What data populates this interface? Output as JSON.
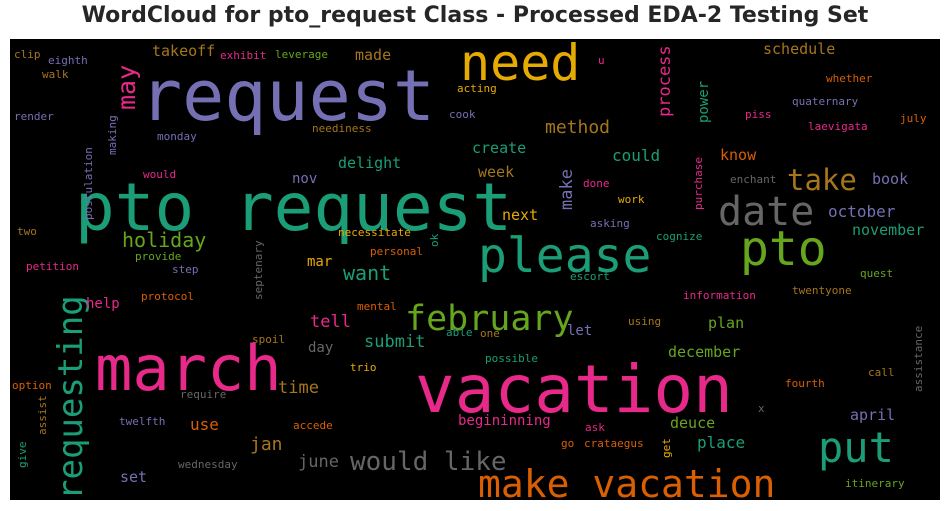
{
  "chart_data": {
    "type": "wordcloud",
    "title": "WordCloud for pto_request Class - Processed EDA-2 Testing Set",
    "background": "#000000",
    "palette": {
      "purple": "#7570b3",
      "green": "#1b9e77",
      "orange": "#d95f02",
      "magenta": "#e7298a",
      "lime": "#66a61e",
      "gold": "#e6ab02",
      "brown": "#a6761d",
      "gray": "#666666"
    },
    "words": [
      {
        "text": "request",
        "weight": 1.0,
        "color": "purple"
      },
      {
        "text": "pto request",
        "weight": 0.98,
        "color": "green"
      },
      {
        "text": "vacation",
        "weight": 0.97,
        "color": "magenta"
      },
      {
        "text": "march",
        "weight": 0.92,
        "color": "magenta"
      },
      {
        "text": "need",
        "weight": 0.74,
        "color": "gold"
      },
      {
        "text": "pto",
        "weight": 0.7,
        "color": "lime"
      },
      {
        "text": "please",
        "weight": 0.7,
        "color": "green"
      },
      {
        "text": "put",
        "weight": 0.6,
        "color": "green"
      },
      {
        "text": "date",
        "weight": 0.59,
        "color": "gray"
      },
      {
        "text": "make vacation",
        "weight": 0.57,
        "color": "orange"
      },
      {
        "text": "february",
        "weight": 0.51,
        "color": "lime"
      },
      {
        "text": "requesting",
        "weight": 0.5,
        "color": "green"
      },
      {
        "text": "take",
        "weight": 0.43,
        "color": "brown"
      },
      {
        "text": "would like",
        "weight": 0.38,
        "color": "gray"
      },
      {
        "text": "may",
        "weight": 0.37,
        "color": "magenta"
      },
      {
        "text": "holiday",
        "weight": 0.3,
        "color": "lime"
      },
      {
        "text": "want",
        "weight": 0.3,
        "color": "green"
      },
      {
        "text": "method",
        "weight": 0.27,
        "color": "brown"
      },
      {
        "text": "jan",
        "weight": 0.27,
        "color": "brown"
      },
      {
        "text": "make",
        "weight": 0.26,
        "color": "purple"
      },
      {
        "text": "process",
        "weight": 0.25,
        "color": "magenta"
      },
      {
        "text": "time",
        "weight": 0.25,
        "color": "brown"
      },
      {
        "text": "tell",
        "weight": 0.25,
        "color": "magenta"
      },
      {
        "text": "submit",
        "weight": 0.25,
        "color": "green"
      },
      {
        "text": "june",
        "weight": 0.25,
        "color": "gray"
      },
      {
        "text": "could",
        "weight": 0.24,
        "color": "green"
      },
      {
        "text": "october",
        "weight": 0.24,
        "color": "purple"
      },
      {
        "text": "use",
        "weight": 0.24,
        "color": "orange"
      },
      {
        "text": "place",
        "weight": 0.24,
        "color": "green"
      },
      {
        "text": "create",
        "weight": 0.22,
        "color": "green"
      },
      {
        "text": "week",
        "weight": 0.22,
        "color": "brown"
      },
      {
        "text": "delight",
        "weight": 0.22,
        "color": "green"
      },
      {
        "text": "know",
        "weight": 0.22,
        "color": "orange"
      },
      {
        "text": "book",
        "weight": 0.22,
        "color": "purple"
      },
      {
        "text": "schedule",
        "weight": 0.22,
        "color": "brown"
      },
      {
        "text": "made",
        "weight": 0.21,
        "color": "brown"
      },
      {
        "text": "takeoff",
        "weight": 0.21,
        "color": "brown"
      },
      {
        "text": "next",
        "weight": 0.21,
        "color": "gold"
      },
      {
        "text": "november",
        "weight": 0.21,
        "color": "green"
      },
      {
        "text": "december",
        "weight": 0.21,
        "color": "lime"
      },
      {
        "text": "plan",
        "weight": 0.21,
        "color": "lime"
      },
      {
        "text": "deuce",
        "weight": 0.21,
        "color": "lime"
      },
      {
        "text": "april",
        "weight": 0.21,
        "color": "purple"
      },
      {
        "text": "set",
        "weight": 0.21,
        "color": "purple"
      },
      {
        "text": "power",
        "weight": 0.2,
        "color": "green"
      },
      {
        "text": "nov",
        "weight": 0.2,
        "color": "purple"
      },
      {
        "text": "day",
        "weight": 0.2,
        "color": "gray"
      },
      {
        "text": "let",
        "weight": 0.2,
        "color": "purple"
      },
      {
        "text": "mar",
        "weight": 0.2,
        "color": "gold"
      },
      {
        "text": "help",
        "weight": 0.2,
        "color": "magenta"
      },
      {
        "text": "begininning",
        "weight": 0.2,
        "color": "magenta"
      },
      {
        "text": "twelfth",
        "weight": 0.14,
        "color": "purple"
      },
      {
        "text": "eighth",
        "weight": 0.14,
        "color": "purple"
      },
      {
        "text": "clip",
        "weight": 0.14,
        "color": "brown"
      },
      {
        "text": "exhibit",
        "weight": 0.13,
        "color": "magenta"
      },
      {
        "text": "leverage",
        "weight": 0.13,
        "color": "lime"
      },
      {
        "text": "walk",
        "weight": 0.13,
        "color": "brown"
      },
      {
        "text": "acting",
        "weight": 0.13,
        "color": "gold"
      },
      {
        "text": "render",
        "weight": 0.13,
        "color": "purple"
      },
      {
        "text": "neediness",
        "weight": 0.13,
        "color": "brown"
      },
      {
        "text": "cook",
        "weight": 0.13,
        "color": "purple"
      },
      {
        "text": "monday",
        "weight": 0.13,
        "color": "purple"
      },
      {
        "text": "would",
        "weight": 0.13,
        "color": "magenta"
      },
      {
        "text": "two",
        "weight": 0.13,
        "color": "brown"
      },
      {
        "text": "petition",
        "weight": 0.13,
        "color": "magenta"
      },
      {
        "text": "provide",
        "weight": 0.13,
        "color": "lime"
      },
      {
        "text": "step",
        "weight": 0.13,
        "color": "purple"
      },
      {
        "text": "protocol",
        "weight": 0.13,
        "color": "orange"
      },
      {
        "text": "spoil",
        "weight": 0.13,
        "color": "brown"
      },
      {
        "text": "trio",
        "weight": 0.13,
        "color": "gold"
      },
      {
        "text": "mental",
        "weight": 0.13,
        "color": "orange"
      },
      {
        "text": "necessitate",
        "weight": 0.13,
        "color": "gold"
      },
      {
        "text": "personal",
        "weight": 0.13,
        "color": "orange"
      },
      {
        "text": "require",
        "weight": 0.13,
        "color": "gray"
      },
      {
        "text": "accede",
        "weight": 0.13,
        "color": "orange"
      },
      {
        "text": "wednesday",
        "weight": 0.13,
        "color": "gray"
      },
      {
        "text": "option",
        "weight": 0.13,
        "color": "orange"
      },
      {
        "text": "ask",
        "weight": 0.13,
        "color": "magenta"
      },
      {
        "text": "go",
        "weight": 0.13,
        "color": "orange"
      },
      {
        "text": "crataegus",
        "weight": 0.13,
        "color": "orange"
      },
      {
        "text": "possible",
        "weight": 0.13,
        "color": "green"
      },
      {
        "text": "able",
        "weight": 0.13,
        "color": "green"
      },
      {
        "text": "one",
        "weight": 0.13,
        "color": "brown"
      },
      {
        "text": "using",
        "weight": 0.13,
        "color": "brown"
      },
      {
        "text": "escort",
        "weight": 0.13,
        "color": "green"
      },
      {
        "text": "asking",
        "weight": 0.13,
        "color": "purple"
      },
      {
        "text": "done",
        "weight": 0.13,
        "color": "magenta"
      },
      {
        "text": "work",
        "weight": 0.13,
        "color": "gold"
      },
      {
        "text": "enchant",
        "weight": 0.13,
        "color": "gray"
      },
      {
        "text": "piss",
        "weight": 0.13,
        "color": "magenta"
      },
      {
        "text": "whether",
        "weight": 0.13,
        "color": "orange"
      },
      {
        "text": "quaternary",
        "weight": 0.13,
        "color": "purple"
      },
      {
        "text": "laevigata",
        "weight": 0.13,
        "color": "magenta"
      },
      {
        "text": "july",
        "weight": 0.13,
        "color": "orange"
      },
      {
        "text": "cognize",
        "weight": 0.13,
        "color": "green"
      },
      {
        "text": "quest",
        "weight": 0.13,
        "color": "lime"
      },
      {
        "text": "information",
        "weight": 0.13,
        "color": "magenta"
      },
      {
        "text": "twentyone",
        "weight": 0.13,
        "color": "brown"
      },
      {
        "text": "call",
        "weight": 0.13,
        "color": "brown"
      },
      {
        "text": "fourth",
        "weight": 0.13,
        "color": "orange"
      },
      {
        "text": "itinerary",
        "weight": 0.13,
        "color": "lime"
      },
      {
        "text": "u",
        "weight": 0.13,
        "color": "magenta"
      },
      {
        "text": "x",
        "weight": 0.13,
        "color": "gray"
      },
      {
        "text": "ok",
        "weight": 0.12,
        "color": "green"
      },
      {
        "text": "get",
        "weight": 0.12,
        "color": "gold"
      },
      {
        "text": "purchase",
        "weight": 0.12,
        "color": "magenta"
      },
      {
        "text": "postulation",
        "weight": 0.12,
        "color": "purple"
      },
      {
        "text": "making",
        "weight": 0.12,
        "color": "purple"
      },
      {
        "text": "septenary",
        "weight": 0.12,
        "color": "gray"
      },
      {
        "text": "assist",
        "weight": 0.12,
        "color": "brown"
      },
      {
        "text": "give",
        "weight": 0.12,
        "color": "green"
      },
      {
        "text": "assistance",
        "weight": 0.12,
        "color": "gray"
      }
    ]
  }
}
